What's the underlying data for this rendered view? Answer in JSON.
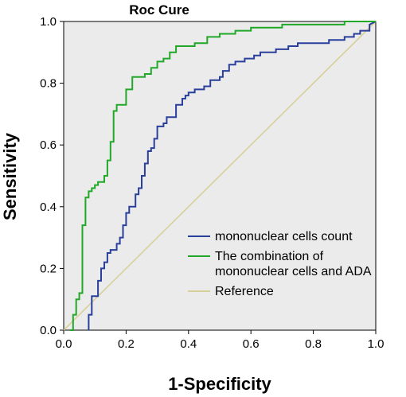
{
  "chart_data": {
    "type": "line",
    "title": "Roc Cure",
    "xlabel": "1-Specificity",
    "ylabel": "Sensitivity",
    "xlim": [
      0.0,
      1.0
    ],
    "ylim": [
      0.0,
      1.0
    ],
    "xticks": [
      "0.0",
      "0.2",
      "0.4",
      "0.6",
      "0.8",
      "1.0"
    ],
    "yticks": [
      "0.0",
      "0.2",
      "0.4",
      "0.6",
      "0.8",
      "1.0"
    ],
    "grid": false,
    "background": "#ebebeb",
    "legend_position": "bottom-right",
    "series": [
      {
        "name": "mononuclear cells count",
        "color": "#2a3f9c",
        "x": [
          0.08,
          0.08,
          0.09,
          0.09,
          0.11,
          0.11,
          0.12,
          0.12,
          0.13,
          0.13,
          0.14,
          0.14,
          0.15,
          0.15,
          0.17,
          0.17,
          0.18,
          0.18,
          0.19,
          0.19,
          0.2,
          0.2,
          0.21,
          0.21,
          0.23,
          0.23,
          0.24,
          0.24,
          0.25,
          0.25,
          0.26,
          0.26,
          0.27,
          0.27,
          0.28,
          0.28,
          0.29,
          0.29,
          0.3,
          0.3,
          0.31,
          0.31,
          0.32,
          0.32,
          0.33,
          0.33,
          0.36,
          0.36,
          0.38,
          0.38,
          0.39,
          0.39,
          0.4,
          0.4,
          0.42,
          0.42,
          0.45,
          0.45,
          0.47,
          0.47,
          0.5,
          0.5,
          0.51,
          0.51,
          0.53,
          0.53,
          0.55,
          0.55,
          0.58,
          0.58,
          0.61,
          0.61,
          0.63,
          0.63,
          0.65,
          0.65,
          0.68,
          0.68,
          0.72,
          0.72,
          0.75,
          0.75,
          0.8,
          0.8,
          0.85,
          0.85,
          0.9,
          0.9,
          0.93,
          0.93,
          0.95,
          0.95,
          0.98,
          0.98,
          1.0
        ],
        "y": [
          0.0,
          0.05,
          0.05,
          0.11,
          0.11,
          0.16,
          0.16,
          0.2,
          0.2,
          0.22,
          0.22,
          0.25,
          0.25,
          0.26,
          0.26,
          0.28,
          0.28,
          0.3,
          0.3,
          0.34,
          0.34,
          0.38,
          0.38,
          0.4,
          0.4,
          0.44,
          0.44,
          0.46,
          0.46,
          0.5,
          0.5,
          0.54,
          0.54,
          0.58,
          0.58,
          0.59,
          0.59,
          0.62,
          0.62,
          0.66,
          0.66,
          0.66,
          0.66,
          0.67,
          0.67,
          0.69,
          0.69,
          0.73,
          0.73,
          0.75,
          0.75,
          0.76,
          0.76,
          0.77,
          0.77,
          0.78,
          0.78,
          0.79,
          0.79,
          0.81,
          0.81,
          0.82,
          0.82,
          0.84,
          0.84,
          0.86,
          0.86,
          0.87,
          0.87,
          0.88,
          0.88,
          0.89,
          0.89,
          0.9,
          0.9,
          0.9,
          0.9,
          0.91,
          0.91,
          0.92,
          0.92,
          0.93,
          0.93,
          0.93,
          0.93,
          0.94,
          0.94,
          0.95,
          0.95,
          0.96,
          0.96,
          0.97,
          0.97,
          0.99,
          1.0
        ]
      },
      {
        "name": "The combination of\nmononuclear cells and ADA",
        "color": "#22a829",
        "x": [
          0.02,
          0.03,
          0.03,
          0.04,
          0.04,
          0.05,
          0.05,
          0.06,
          0.06,
          0.07,
          0.07,
          0.08,
          0.08,
          0.09,
          0.09,
          0.1,
          0.1,
          0.11,
          0.11,
          0.13,
          0.13,
          0.14,
          0.14,
          0.15,
          0.15,
          0.16,
          0.16,
          0.17,
          0.17,
          0.2,
          0.2,
          0.22,
          0.22,
          0.26,
          0.26,
          0.28,
          0.28,
          0.3,
          0.3,
          0.32,
          0.32,
          0.34,
          0.34,
          0.36,
          0.36,
          0.42,
          0.42,
          0.46,
          0.46,
          0.5,
          0.5,
          0.55,
          0.55,
          0.6,
          0.6,
          0.64,
          0.64,
          0.7,
          0.7,
          0.75,
          0.75,
          0.9,
          0.9,
          0.93,
          0.93,
          1.0
        ],
        "y": [
          0.0,
          0.0,
          0.05,
          0.05,
          0.1,
          0.1,
          0.12,
          0.12,
          0.34,
          0.34,
          0.43,
          0.43,
          0.45,
          0.45,
          0.46,
          0.46,
          0.47,
          0.47,
          0.48,
          0.48,
          0.5,
          0.5,
          0.55,
          0.55,
          0.61,
          0.61,
          0.71,
          0.71,
          0.73,
          0.73,
          0.78,
          0.78,
          0.82,
          0.82,
          0.83,
          0.83,
          0.85,
          0.85,
          0.87,
          0.87,
          0.88,
          0.88,
          0.9,
          0.9,
          0.92,
          0.92,
          0.93,
          0.93,
          0.95,
          0.95,
          0.96,
          0.96,
          0.97,
          0.97,
          0.98,
          0.98,
          0.98,
          0.98,
          0.99,
          0.99,
          0.99,
          0.99,
          1.0,
          1.0,
          1.0,
          1.0
        ]
      },
      {
        "name": "Reference",
        "color": "#d7d09b",
        "x": [
          0.0,
          1.0
        ],
        "y": [
          0.0,
          1.0
        ]
      }
    ]
  }
}
